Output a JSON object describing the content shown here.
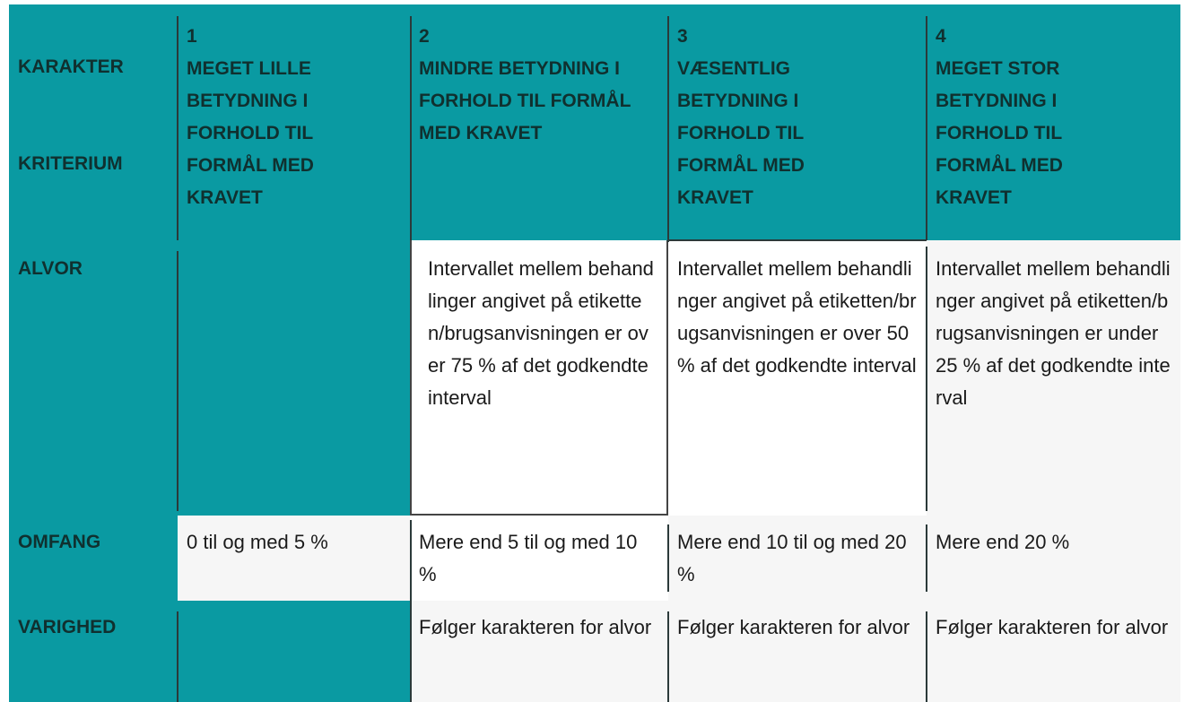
{
  "header": {
    "corner_top": "KARAKTER",
    "corner_bottom": "KRITERIUM",
    "grades": [
      {
        "number": "1",
        "label": "MEGET LILLE BETYDNING I FORHOLD TIL FORMÅL MED KRAVET"
      },
      {
        "number": "2",
        "label": "MINDRE BETYDNING I FORHOLD TIL FORMÅL MED KRAVET"
      },
      {
        "number": "3",
        "label": "VÆSENTLIG BETYDNING I FORHOLD TIL FORMÅL MED KRAVET"
      },
      {
        "number": "4",
        "label": "MEGET STOR BETYDNING I FORHOLD TIL FORMÅL MED KRAVET"
      }
    ]
  },
  "rows": [
    {
      "criterion": "ALVOR",
      "cells": [
        "",
        "Intervallet mellem behandlinger angivet på etiketten/brugsanvisningen er over 75 % af det godkendte interval",
        "Intervallet mellem behandlinger angivet på etiketten/brugsanvisningen er over 50 % af det godkendte interval",
        "Intervallet mellem behandlinger angivet på etiketten/brugsanvisningen er under 25 % af det godkendte interval"
      ]
    },
    {
      "criterion": "OMFANG",
      "cells": [
        "0 til og med 5 %",
        "Mere end 5 til og med 10 %",
        "Mere end 10 til og med 20 %",
        "Mere end 20 %"
      ]
    },
    {
      "criterion": "VARIGHED",
      "cells": [
        "",
        "Følger karakteren for alvor",
        "Følger karakteren for alvor",
        "Følger karakteren for alvor"
      ]
    }
  ],
  "colors": {
    "header_teal": "#0a9aa2",
    "cell_light": "#f6f6f6",
    "cell_white": "#ffffff"
  }
}
